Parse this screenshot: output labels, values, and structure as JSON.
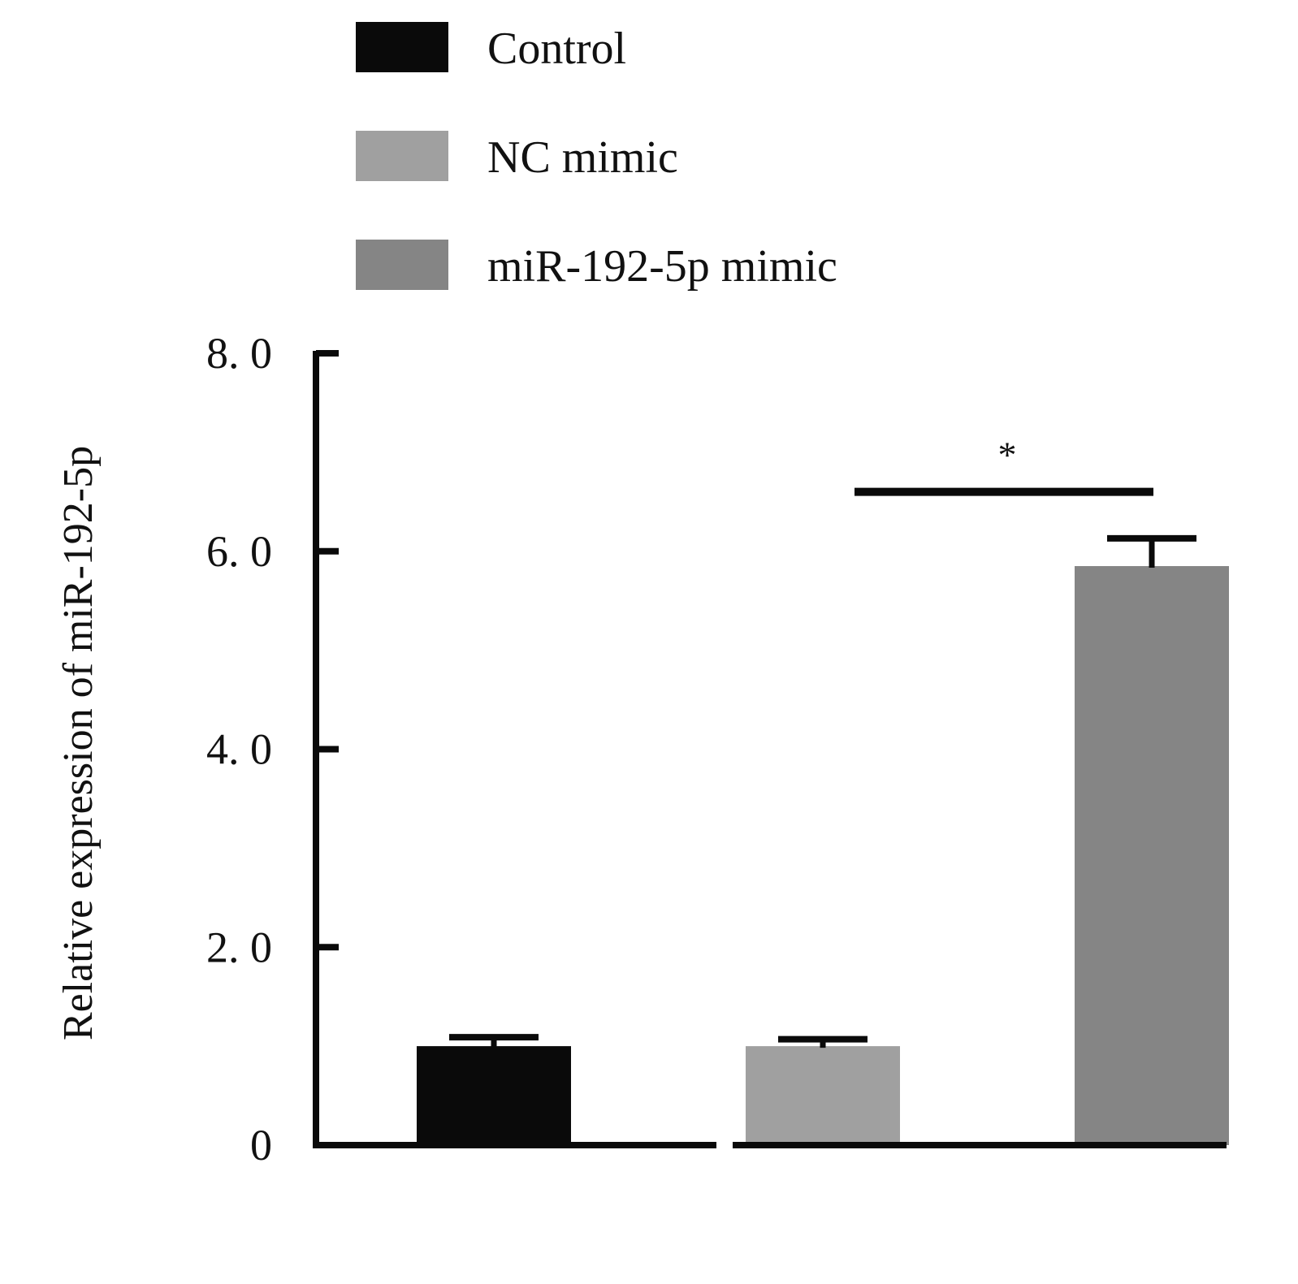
{
  "chart_data": {
    "type": "bar",
    "categories": [
      "Control",
      "NC mimic",
      "miR-192-5p mimic"
    ],
    "series": [
      {
        "name": "Relative expression of miR-192-5p",
        "values": [
          1.0,
          1.0,
          5.85
        ],
        "errors": [
          0.09,
          0.07,
          0.28
        ]
      }
    ],
    "colors": [
      "#0a0a0a",
      "#a0a0a0",
      "#858585"
    ],
    "legend": {
      "position": "top",
      "items": [
        {
          "label": "Control",
          "color": "#0a0a0a"
        },
        {
          "label": "NC mimic",
          "color": "#a0a0a0"
        },
        {
          "label": "miR-192-5p mimic",
          "color": "#858585"
        }
      ]
    },
    "ylabel": "Relative expression of miR-192-5p",
    "xlabel": "",
    "ylim": [
      0,
      8
    ],
    "yticks": [
      0,
      2,
      4,
      6,
      8
    ],
    "ytick_labels": [
      "0",
      "2. 0",
      "4. 0",
      "6. 0",
      "8. 0"
    ],
    "significance": {
      "between": [
        "NC mimic",
        "miR-192-5p mimic"
      ],
      "label": "*",
      "y": 6.6
    },
    "grid": false,
    "axis_break": true
  }
}
